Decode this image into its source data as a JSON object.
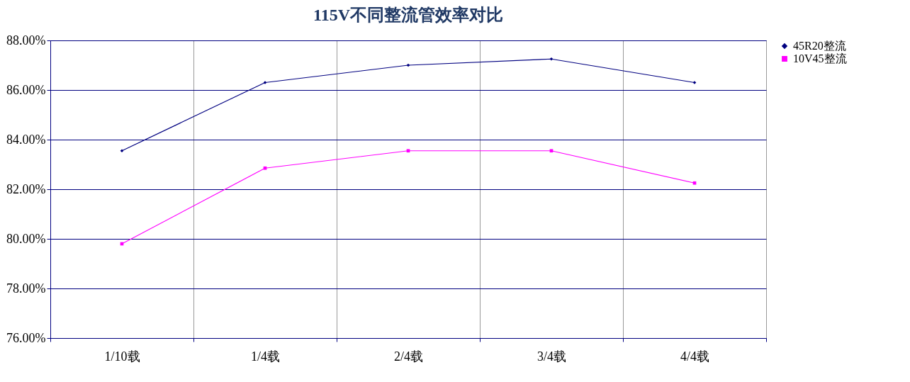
{
  "chart_data": {
    "type": "line",
    "title": "115V不同整流管效率对比",
    "categories": [
      "1/10载",
      "1/4载",
      "2/4载",
      "3/4载",
      "4/4载"
    ],
    "series": [
      {
        "name": "45R20整流",
        "color": "#000080",
        "marker": "diamond",
        "values": [
          83.55,
          86.3,
          87.0,
          87.25,
          86.3
        ]
      },
      {
        "name": "10V45整流",
        "color": "#ff00ff",
        "marker": "square",
        "values": [
          79.8,
          82.85,
          83.55,
          83.55,
          82.25
        ]
      }
    ],
    "ylim": [
      76,
      88
    ],
    "yticks": [
      {
        "value": 76,
        "label": "76.00%"
      },
      {
        "value": 78,
        "label": "78.00%"
      },
      {
        "value": 80,
        "label": "80.00%"
      },
      {
        "value": 82,
        "label": "82.00%"
      },
      {
        "value": 84,
        "label": "84.00%"
      },
      {
        "value": 86,
        "label": "86.00%"
      },
      {
        "value": 88,
        "label": "88.00%"
      }
    ],
    "grid": true,
    "legend": "right"
  }
}
